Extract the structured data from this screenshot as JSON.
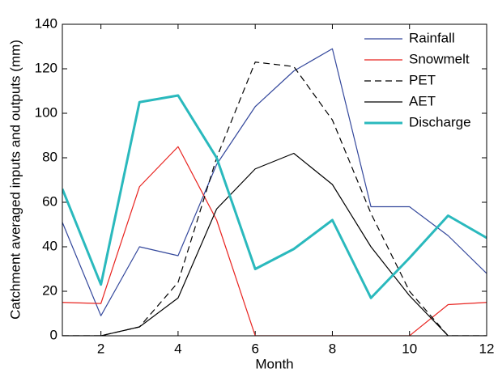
{
  "chart_data": {
    "type": "line",
    "x_label": "Month",
    "y_label": "Catchment averaged inputs and outputs (mm)",
    "x": [
      1,
      2,
      3,
      4,
      5,
      6,
      7,
      8,
      9,
      10,
      11,
      12
    ],
    "series": [
      {
        "name": "Rainfall",
        "color": "#34489c",
        "linestyle": "solid",
        "linewidth": 1.2,
        "values": [
          51,
          9,
          40,
          36,
          77,
          103,
          119,
          129,
          58,
          58,
          45,
          28
        ]
      },
      {
        "name": "Snowmelt",
        "color": "#e8231f",
        "linestyle": "solid",
        "linewidth": 1.2,
        "values": [
          15,
          14.5,
          67,
          85,
          52,
          0,
          0,
          0,
          0,
          0,
          14,
          15
        ]
      },
      {
        "name": "PET",
        "color": "#000000",
        "linestyle": "dashed",
        "linewidth": 1.2,
        "values": [
          0,
          0,
          4,
          24,
          80,
          123,
          121,
          97,
          55,
          20,
          0,
          0
        ]
      },
      {
        "name": "AET",
        "color": "#000000",
        "linestyle": "solid",
        "linewidth": 1.2,
        "values": [
          0,
          0,
          4,
          17,
          57,
          75,
          82,
          68,
          40,
          18,
          0,
          0
        ]
      },
      {
        "name": "Discharge",
        "color": "#2ab9bd",
        "linestyle": "solid",
        "linewidth": 3,
        "values": [
          66,
          23,
          105,
          108,
          80,
          30,
          39,
          52,
          17,
          35,
          54,
          44
        ]
      }
    ],
    "xlim": [
      1,
      12
    ],
    "xticks": [
      2,
      4,
      6,
      8,
      10,
      12
    ],
    "ylim": [
      0,
      140
    ],
    "yticks": [
      0,
      20,
      40,
      60,
      80,
      100,
      120,
      140
    ],
    "legend": "upper right"
  }
}
